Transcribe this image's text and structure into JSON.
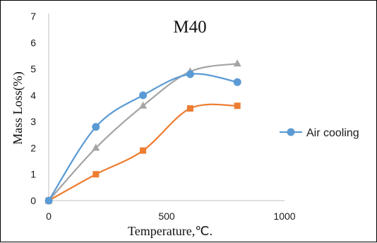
{
  "chart_data": {
    "type": "line",
    "title": "M40",
    "xlabel": "Temperature,℃.",
    "ylabel": "Mass Loss(%)",
    "xlim": [
      0,
      1000
    ],
    "ylim": [
      0,
      7
    ],
    "xticks": [
      0,
      500,
      1000
    ],
    "yticks": [
      0,
      1,
      2,
      3,
      4,
      5,
      6,
      7
    ],
    "grid": false,
    "legend_position": "right",
    "series": [
      {
        "name": "Air cooling",
        "color": "#5b9bd5",
        "marker": "circle",
        "smooth": true,
        "x": [
          0,
          200,
          400,
          600,
          800
        ],
        "y": [
          0,
          2.8,
          4.0,
          4.8,
          4.5
        ]
      },
      {
        "color": "#ed7d31",
        "marker": "square",
        "smooth": true,
        "x": [
          0,
          200,
          400,
          600,
          800
        ],
        "y": [
          0,
          1.0,
          1.9,
          3.5,
          3.6
        ]
      },
      {
        "color": "#a5a5a5",
        "marker": "triangle",
        "smooth": true,
        "x": [
          0,
          200,
          400,
          600,
          800
        ],
        "y": [
          0,
          2.0,
          3.6,
          4.9,
          5.2
        ]
      }
    ]
  }
}
